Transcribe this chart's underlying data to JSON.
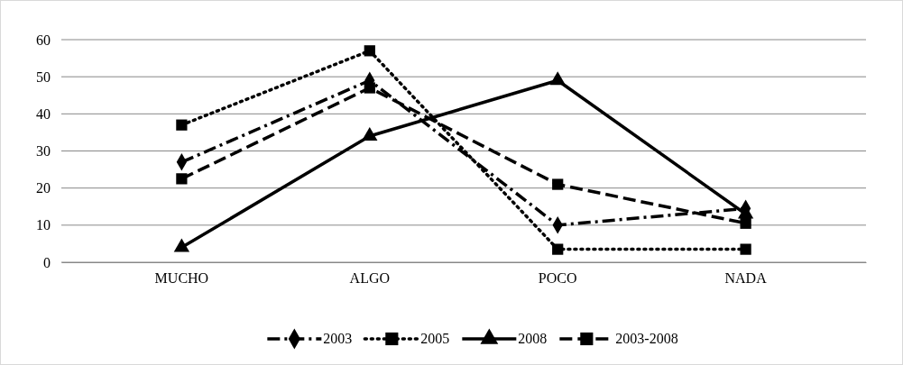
{
  "chart_data": {
    "type": "line",
    "categories": [
      "MUCHO",
      "ALGO",
      "POCO",
      "NADA"
    ],
    "series": [
      {
        "name": "2003",
        "color": "#000000",
        "marker": "diamond",
        "line_style": "dashdot",
        "values": [
          27,
          49,
          10,
          14.5
        ]
      },
      {
        "name": "2005",
        "color": "#000000",
        "marker": "square",
        "line_style": "dotted",
        "values": [
          37,
          57,
          3.5,
          3.5
        ]
      },
      {
        "name": "2008",
        "color": "#000000",
        "marker": "triangle",
        "line_style": "solid",
        "values": [
          4,
          34,
          49,
          13
        ]
      },
      {
        "name": "2003-2008",
        "color": "#000000",
        "marker": "square",
        "line_style": "dashed",
        "values": [
          22.5,
          47,
          21,
          10.5
        ]
      }
    ],
    "ylim": [
      0,
      60
    ],
    "yticks": [
      0,
      10,
      20,
      30,
      40,
      50,
      60
    ],
    "grid": "y",
    "legend": "bottom"
  }
}
